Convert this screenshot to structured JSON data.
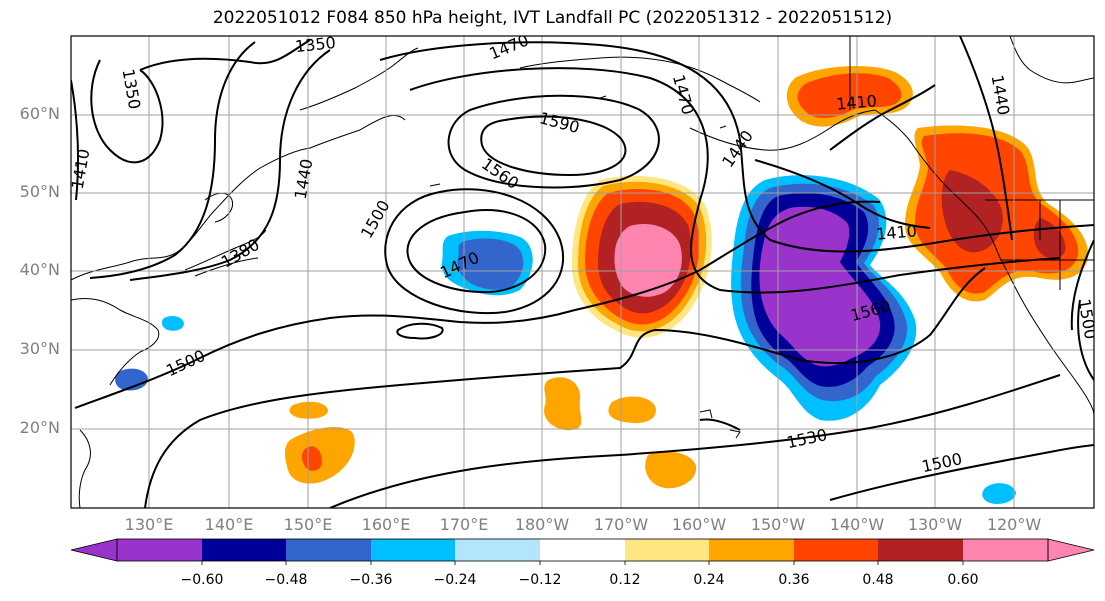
{
  "title": "2022051012 F084 850 hPa height, IVT Landfall PC (2022051312 - 2022051512)",
  "lat_labels": [
    "60°N",
    "50°N",
    "40°N",
    "30°N",
    "20°N"
  ],
  "lon_labels": [
    "130°E",
    "140°E",
    "150°E",
    "160°E",
    "170°E",
    "180°W",
    "170°W",
    "160°W",
    "150°W",
    "140°W",
    "130°W",
    "120°W"
  ],
  "contour_labels": [
    "1350",
    "1350",
    "1470",
    "1470",
    "1590",
    "1560",
    "1500",
    "1470",
    "1440",
    "1410",
    "1380",
    "1500",
    "1410",
    "1440",
    "1410",
    "1560",
    "1530",
    "1500",
    "1500",
    "1440"
  ],
  "colorbar": {
    "ticks": [
      "−0.60",
      "−0.48",
      "−0.36",
      "−0.24",
      "−0.12",
      "0.12",
      "0.24",
      "0.36",
      "0.48",
      "0.60"
    ],
    "colors": [
      "#9933CC",
      "#000099",
      "#3366CC",
      "#00BFFF",
      "#B3E5FC",
      "#FFFFFF",
      "#FFE680",
      "#FFA500",
      "#FF4500",
      "#B22222",
      "#FF85B0",
      "#FF85B0"
    ]
  }
}
